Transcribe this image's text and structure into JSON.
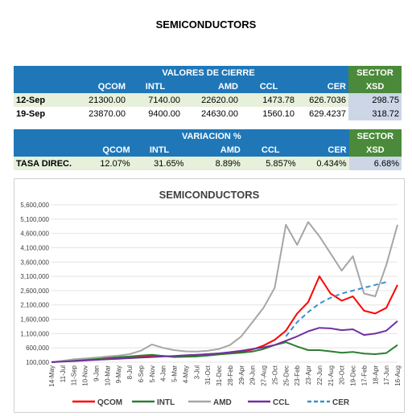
{
  "page": {
    "title": "SEMICONDUCTORS"
  },
  "close_table": {
    "group_header": "VALORES DE CIERRE",
    "sector_header": "SECTOR",
    "columns": [
      "QCOM",
      "INTL",
      "AMD",
      "CCL",
      "CER",
      "XSD"
    ],
    "rows": [
      {
        "date": "12-Sep",
        "values": [
          "21300.00",
          "7140.00",
          "22620.00",
          "1473.78",
          "626.7036",
          "298.75"
        ]
      },
      {
        "date": "19-Sep",
        "values": [
          "23870.00",
          "9400.00",
          "24630.00",
          "1560.10",
          "629.4237",
          "318.72"
        ]
      }
    ]
  },
  "variation_table": {
    "group_header": "VARIACION %",
    "sector_header": "SECTOR",
    "columns": [
      "QCOM",
      "INTL",
      "AMD",
      "CCL",
      "CER",
      "XSD"
    ],
    "row_label": "TASA DIREC.",
    "values": [
      "12.07%",
      "31.65%",
      "8.89%",
      "5.857%",
      "0.434%",
      "6.68%"
    ]
  },
  "chart_data": {
    "type": "line",
    "title": "SEMICONDUCTORS",
    "xlabel": "",
    "ylabel": "",
    "ylim": [
      100000,
      5600000
    ],
    "yticks": [
      100000,
      600000,
      1100000,
      1600000,
      2100000,
      2600000,
      3100000,
      3600000,
      4100000,
      4600000,
      5100000,
      5600000
    ],
    "ytick_labels": [
      "100,000",
      "600,000",
      "1,100,000",
      "1,600,000",
      "2,100,000",
      "2,600,000",
      "3,100,000",
      "3,600,000",
      "4,100,000",
      "4,600,000",
      "5,100,000",
      "5,600,000"
    ],
    "x": [
      "14-May",
      "11-Jul",
      "11-Sep",
      "10-Nov",
      "9-Jan",
      "10-Mar",
      "9-May",
      "8-Jul",
      "6-Sep",
      "5-Nov",
      "4-Jan",
      "5-Mar",
      "4-May",
      "3-Jul",
      "31-Oct",
      "31-Dec",
      "28-Feb",
      "29-Apr",
      "29-Jun",
      "27-Aug",
      "25-Oct",
      "25-Dec",
      "23-Feb",
      "23-Apr",
      "22-Jun",
      "21-Aug",
      "20-Oct",
      "19-Dec",
      "17-Feb",
      "18-Apr",
      "17-Jun",
      "16-Aug"
    ],
    "grid": true,
    "legend_position": "bottom",
    "series": [
      {
        "name": "QCOM",
        "color": "#ff0000",
        "style": "solid",
        "values": [
          100000,
          130000,
          150000,
          170000,
          200000,
          220000,
          240000,
          260000,
          300000,
          330000,
          320000,
          300000,
          330000,
          350000,
          380000,
          400000,
          420000,
          470000,
          540000,
          680000,
          880000,
          1200000,
          1800000,
          2200000,
          3100000,
          2500000,
          2250000,
          2400000,
          1900000,
          1800000,
          2000000,
          2800000
        ]
      },
      {
        "name": "INTL",
        "color": "#2e7d32",
        "style": "solid",
        "values": [
          100000,
          140000,
          170000,
          200000,
          230000,
          260000,
          280000,
          300000,
          330000,
          360000,
          320000,
          280000,
          290000,
          300000,
          330000,
          370000,
          400000,
          430000,
          470000,
          560000,
          700000,
          800000,
          650000,
          520000,
          520000,
          480000,
          430000,
          460000,
          400000,
          380000,
          420000,
          700000
        ]
      },
      {
        "name": "AMD",
        "color": "#a6a6a6",
        "style": "solid",
        "values": [
          100000,
          150000,
          200000,
          230000,
          260000,
          300000,
          330000,
          380000,
          500000,
          720000,
          600000,
          520000,
          480000,
          470000,
          500000,
          560000,
          700000,
          1000000,
          1500000,
          2000000,
          2700000,
          4900000,
          4200000,
          5000000,
          4500000,
          3900000,
          3300000,
          3800000,
          2500000,
          2400000,
          3500000,
          4900000
        ]
      },
      {
        "name": "CCL",
        "color": "#7030a0",
        "style": "solid",
        "values": [
          100000,
          120000,
          140000,
          160000,
          180000,
          200000,
          220000,
          240000,
          260000,
          280000,
          300000,
          320000,
          340000,
          360000,
          380000,
          410000,
          450000,
          500000,
          560000,
          620000,
          700000,
          850000,
          1000000,
          1180000,
          1300000,
          1280000,
          1220000,
          1250000,
          1050000,
          1100000,
          1200000,
          1540000
        ]
      },
      {
        "name": "CER",
        "color": "#3c8fce",
        "style": "dashed",
        "values": [
          null,
          null,
          null,
          null,
          null,
          null,
          null,
          null,
          null,
          null,
          null,
          null,
          null,
          null,
          null,
          null,
          null,
          null,
          null,
          null,
          null,
          1000000,
          1500000,
          1850000,
          2150000,
          2350000,
          2500000,
          2600000,
          2700000,
          2800000,
          2900000,
          null
        ]
      }
    ]
  }
}
